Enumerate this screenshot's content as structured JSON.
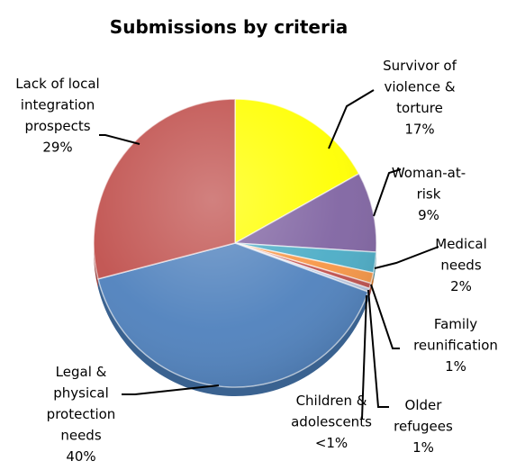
{
  "chart_data": {
    "type": "pie",
    "title": "Submissions by criteria",
    "slices": [
      {
        "name": "Survivor of violence & torture",
        "label_lines": [
          "Survivor of",
          "violence &",
          "torture"
        ],
        "pct_label": "17%",
        "value": 17,
        "color": "#ffff00",
        "side": "#cccc00"
      },
      {
        "name": "Woman-at-risk",
        "label_lines": [
          "Woman-at-",
          "risk"
        ],
        "pct_label": "9%",
        "value": 9,
        "color": "#8064a2",
        "side": "#5f4a7b"
      },
      {
        "name": "Medical needs",
        "label_lines": [
          "Medical",
          "needs"
        ],
        "pct_label": "2%",
        "value": 2.3,
        "color": "#4bacc6",
        "side": "#357f93"
      },
      {
        "name": "Family reunification",
        "label_lines": [
          "Family",
          "reunification"
        ],
        "pct_label": "1%",
        "value": 1.2,
        "color": "#f79646",
        "side": "#c06f2c"
      },
      {
        "name": "Older refugees",
        "label_lines": [
          "Older",
          "refugees"
        ],
        "pct_label": "1%",
        "value": 0.6,
        "color": "#c0504d",
        "side": "#903a38"
      },
      {
        "name": "Children & adolescents",
        "label_lines": [
          "Children &",
          "adolescents"
        ],
        "pct_label": "<1%",
        "value": 0.4,
        "color": "#b7c4de",
        "side": "#8b98b3"
      },
      {
        "name": "Legal & physical protection needs",
        "label_lines": [
          "Legal &",
          "physical",
          "protection",
          "needs"
        ],
        "pct_label": "40%",
        "value": 40.5,
        "color": "#4f81bd",
        "side": "#3a6290"
      },
      {
        "name": "Lack of local integration prospects",
        "label_lines": [
          "Lack of local",
          "integration",
          "prospects"
        ],
        "pct_label": "29%",
        "value": 29,
        "color": "#c0504d",
        "side": "#943b39"
      }
    ]
  }
}
